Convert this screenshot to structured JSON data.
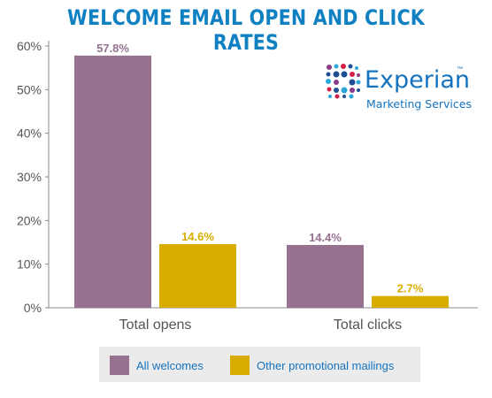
{
  "colors": {
    "title": "#0f80c1",
    "all_welcomes": "#96728f",
    "other_promo": "#d9ad00",
    "axis_text": "#555555",
    "brand_blue": "#1473c0",
    "dot_red": "#d41f48",
    "dot_purple": "#8a3b8d",
    "dot_navy": "#1d4f91",
    "dot_cyan": "#2ba7d8"
  },
  "logo": {
    "brand": "Experian",
    "trademark": "™",
    "subtitle": "Marketing Services",
    "icon": "experian-dots-icon"
  },
  "chart_data": {
    "type": "bar",
    "title": "WELCOME EMAIL OPEN AND CLICK RATES",
    "categories": [
      "Total opens",
      "Total clicks"
    ],
    "series": [
      {
        "name": "All welcomes",
        "values": [
          57.8,
          14.4
        ],
        "labels": [
          "57.8%",
          "14.4%"
        ]
      },
      {
        "name": "Other promotional mailings",
        "values": [
          14.6,
          2.7
        ],
        "labels": [
          "14.6%",
          "2.7%"
        ]
      }
    ],
    "yticks": [
      0,
      10,
      20,
      30,
      40,
      50,
      60
    ],
    "ytick_labels": [
      "0%",
      "10%",
      "20%",
      "30%",
      "40%",
      "50%",
      "60%"
    ],
    "ylim": [
      0,
      60
    ],
    "grid": false,
    "legend_position": "bottom"
  }
}
